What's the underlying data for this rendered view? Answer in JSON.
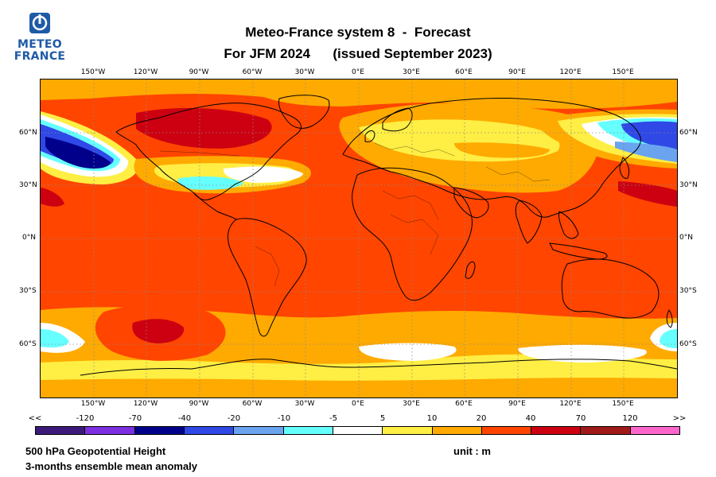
{
  "logo": {
    "line1": "METEO",
    "line2": "FRANCE"
  },
  "header": {
    "title_line1": "Meteo-France system 8  -  Forecast",
    "title_line2": "For JFM 2024      (issued September 2023)"
  },
  "axes": {
    "lon_ticks": [
      "150°W",
      "120°W",
      "90°W",
      "60°W",
      "30°W",
      "0°E",
      "30°E",
      "60°E",
      "90°E",
      "120°E",
      "150°E"
    ],
    "lat_ticks": [
      "60°N",
      "30°N",
      "0°N",
      "30°S",
      "60°S"
    ]
  },
  "colorbar": {
    "labels": [
      "<<",
      "-120",
      "-70",
      "-40",
      "-20",
      "-10",
      "-5",
      "5",
      "10",
      "20",
      "40",
      "70",
      "120",
      ">>"
    ],
    "colors": [
      "#3b1a7a",
      "#7b2fe0",
      "#00008b",
      "#2f48e6",
      "#6aa4ef",
      "#66ffff",
      "#ffffff",
      "#ffee44",
      "#ffaa00",
      "#ff4500",
      "#cc0011",
      "#a01a1a",
      "#ff66cc"
    ]
  },
  "footer": {
    "variable": "500 hPa Geopotential Height",
    "description": "3-months ensemble mean anomaly",
    "unit": "unit : m"
  },
  "colors": {
    "land_outline": "#000000",
    "grid": "#8a8a8a"
  }
}
